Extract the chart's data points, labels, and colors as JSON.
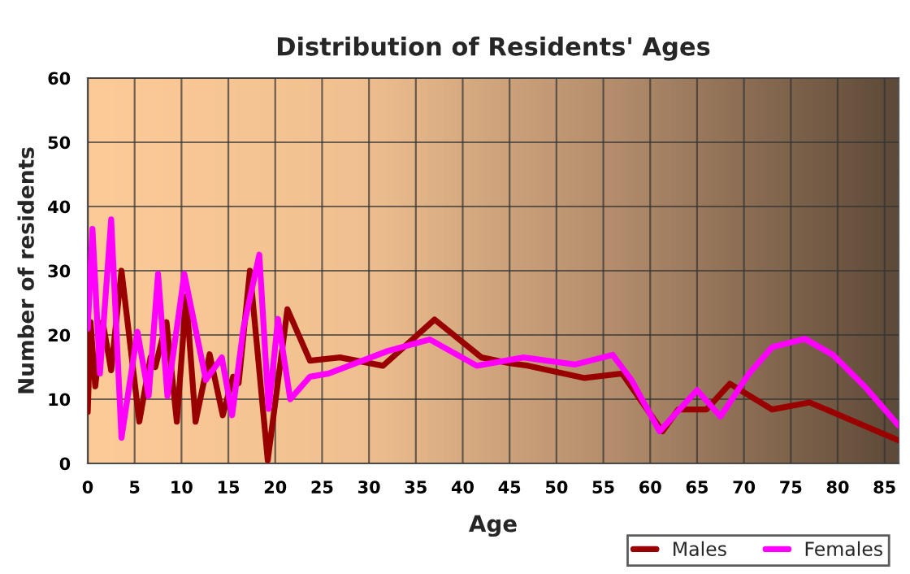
{
  "chart_data": {
    "type": "line",
    "title": "Distribution of Residents' Ages",
    "xlabel": "Age",
    "ylabel": "Number of residents",
    "xlim": [
      0,
      86.5
    ],
    "ylim": [
      0,
      60
    ],
    "xticks": [
      0,
      5,
      10,
      15,
      20,
      25,
      30,
      35,
      40,
      45,
      50,
      55,
      60,
      65,
      70,
      75,
      80,
      85
    ],
    "yticks": [
      0,
      10,
      20,
      30,
      40,
      50,
      60
    ],
    "grid": true,
    "legend": "bottom right",
    "line_style": "solid",
    "marker": "none",
    "series": [
      {
        "name": "Males",
        "color": "#990000",
        "x": [
          0,
          0.3,
          0.8,
          1.6,
          2.5,
          3.6,
          5.5,
          6.7,
          7.2,
          8.4,
          9.5,
          10.5,
          11.5,
          13,
          14.4,
          15.5,
          16.1,
          17.3,
          19.2,
          21.3,
          23.7,
          26.9,
          31.5,
          37,
          42,
          45,
          47,
          53,
          57,
          61.3,
          63,
          66,
          68.5,
          73,
          77,
          86.5
        ],
        "values": [
          8,
          22,
          12,
          22,
          14.5,
          30,
          6.5,
          16.5,
          15,
          22,
          6.5,
          26,
          6.5,
          17,
          7.5,
          13.5,
          12.5,
          30,
          0.5,
          24,
          16,
          16.5,
          15.2,
          22.4,
          16.5,
          15.6,
          15.2,
          13.3,
          14,
          5,
          8.4,
          8.4,
          12.4,
          8.4,
          9.5,
          3.6
        ]
      },
      {
        "name": "Females",
        "color": "#ff00ff",
        "x": [
          0,
          0.5,
          1.3,
          2.5,
          3.6,
          5.3,
          6.5,
          7.5,
          8.5,
          10.3,
          12.6,
          14.3,
          15.4,
          16.6,
          18.3,
          19.3,
          20.3,
          21.6,
          23.7,
          25.7,
          32,
          36.5,
          41.5,
          46.5,
          52,
          56,
          58,
          61,
          65,
          67.5,
          70.5,
          73,
          76.5,
          79.5,
          83,
          86.5
        ],
        "values": [
          21,
          36.5,
          14,
          38,
          4,
          20.5,
          10.5,
          29.5,
          10.5,
          29.5,
          13,
          16.5,
          7.5,
          21,
          32.5,
          8.5,
          22.5,
          10,
          13.5,
          14,
          17.5,
          19.3,
          15.2,
          16.5,
          15.4,
          16.9,
          13,
          5,
          11.4,
          7.3,
          13.9,
          18.1,
          19.4,
          16.9,
          11.8,
          5.9
        ]
      }
    ]
  }
}
